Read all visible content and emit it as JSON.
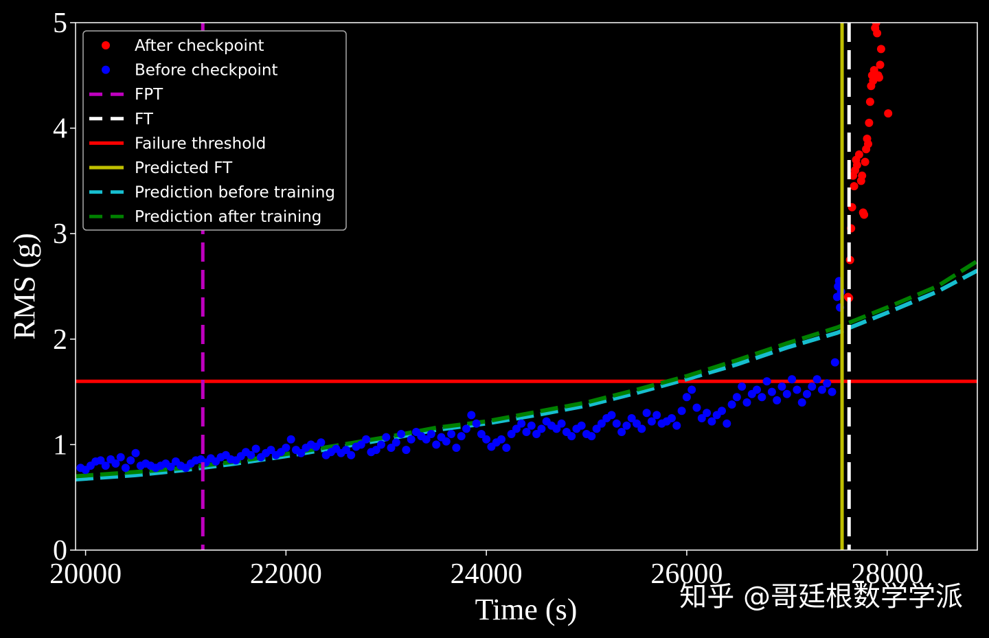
{
  "chart_data": {
    "type": "scatter",
    "title": "",
    "xlabel": "Time (s)",
    "ylabel": "RMS (g)",
    "xlim": [
      19900,
      28900
    ],
    "ylim": [
      0,
      5
    ],
    "x_ticks": [
      {
        "value": 20000,
        "label": "20000"
      },
      {
        "value": 22000,
        "label": "22000"
      },
      {
        "value": 24000,
        "label": "24000"
      },
      {
        "value": 26000,
        "label": "26000"
      },
      {
        "value": 28000,
        "label": "28000"
      }
    ],
    "y_ticks": [
      {
        "value": 0,
        "label": "0"
      },
      {
        "value": 1,
        "label": "1"
      },
      {
        "value": 2,
        "label": "2"
      },
      {
        "value": 3,
        "label": "3"
      },
      {
        "value": 4,
        "label": "4"
      },
      {
        "value": 5,
        "label": "5"
      }
    ],
    "grid": false,
    "legend_position": "top-left",
    "series": [
      {
        "name": "After checkpoint",
        "kind": "scatter",
        "color": "#ff0000",
        "points": [
          [
            27610,
            2.4
          ],
          [
            27620,
            2.39
          ],
          [
            27630,
            2.75
          ],
          [
            27640,
            3.05
          ],
          [
            27650,
            3.25
          ],
          [
            27660,
            3.55
          ],
          [
            27670,
            3.45
          ],
          [
            27680,
            3.6
          ],
          [
            27690,
            3.7
          ],
          [
            27700,
            3.65
          ],
          [
            27720,
            3.75
          ],
          [
            27740,
            3.5
          ],
          [
            27750,
            3.55
          ],
          [
            27760,
            3.2
          ],
          [
            27770,
            3.18
          ],
          [
            27780,
            3.68
          ],
          [
            27790,
            3.8
          ],
          [
            27800,
            3.9
          ],
          [
            27810,
            3.85
          ],
          [
            27820,
            4.05
          ],
          [
            27830,
            4.25
          ],
          [
            27840,
            4.4
          ],
          [
            27850,
            4.5
          ],
          [
            27860,
            4.45
          ],
          [
            27870,
            4.55
          ],
          [
            27880,
            4.95
          ],
          [
            27890,
            5.0
          ],
          [
            27900,
            4.9
          ],
          [
            27910,
            4.5
          ],
          [
            27920,
            4.48
          ],
          [
            27930,
            4.6
          ],
          [
            27940,
            4.75
          ],
          [
            28010,
            4.14
          ]
        ]
      },
      {
        "name": "Before checkpoint",
        "kind": "scatter",
        "color": "#0000ff",
        "points": [
          [
            19950,
            0.78
          ],
          [
            20000,
            0.76
          ],
          [
            20050,
            0.8
          ],
          [
            20100,
            0.84
          ],
          [
            20150,
            0.85
          ],
          [
            20200,
            0.8
          ],
          [
            20250,
            0.86
          ],
          [
            20300,
            0.82
          ],
          [
            20350,
            0.88
          ],
          [
            20400,
            0.78
          ],
          [
            20450,
            0.85
          ],
          [
            20500,
            0.92
          ],
          [
            20550,
            0.8
          ],
          [
            20600,
            0.82
          ],
          [
            20650,
            0.8
          ],
          [
            20700,
            0.78
          ],
          [
            20750,
            0.8
          ],
          [
            20800,
            0.82
          ],
          [
            20850,
            0.79
          ],
          [
            20900,
            0.84
          ],
          [
            20950,
            0.8
          ],
          [
            21000,
            0.78
          ],
          [
            21050,
            0.82
          ],
          [
            21100,
            0.85
          ],
          [
            21150,
            0.86
          ],
          [
            21200,
            0.83
          ],
          [
            21250,
            0.87
          ],
          [
            21300,
            0.84
          ],
          [
            21350,
            0.88
          ],
          [
            21400,
            0.9
          ],
          [
            21450,
            0.86
          ],
          [
            21500,
            0.85
          ],
          [
            21550,
            0.89
          ],
          [
            21600,
            0.93
          ],
          [
            21650,
            0.9
          ],
          [
            21700,
            0.96
          ],
          [
            21750,
            0.88
          ],
          [
            21800,
            0.92
          ],
          [
            21850,
            0.95
          ],
          [
            21900,
            0.9
          ],
          [
            21950,
            0.93
          ],
          [
            22000,
            0.97
          ],
          [
            22050,
            1.05
          ],
          [
            22100,
            0.95
          ],
          [
            22150,
            0.92
          ],
          [
            22200,
            0.97
          ],
          [
            22250,
            1.0
          ],
          [
            22300,
            0.98
          ],
          [
            22350,
            1.02
          ],
          [
            22400,
            0.9
          ],
          [
            22450,
            0.93
          ],
          [
            22500,
            0.96
          ],
          [
            22550,
            0.92
          ],
          [
            22600,
            0.95
          ],
          [
            22650,
            0.9
          ],
          [
            22700,
            0.98
          ],
          [
            22750,
            1.0
          ],
          [
            22800,
            1.05
          ],
          [
            22850,
            0.93
          ],
          [
            22900,
            0.95
          ],
          [
            22950,
            1.0
          ],
          [
            23000,
            1.07
          ],
          [
            23050,
            0.97
          ],
          [
            23100,
            1.02
          ],
          [
            23150,
            1.1
          ],
          [
            23200,
            0.95
          ],
          [
            23250,
            1.05
          ],
          [
            23300,
            1.12
          ],
          [
            23350,
            1.08
          ],
          [
            23400,
            1.05
          ],
          [
            23450,
            1.1
          ],
          [
            23500,
            1.0
          ],
          [
            23550,
            1.07
          ],
          [
            23600,
            1.03
          ],
          [
            23650,
            1.1
          ],
          [
            23700,
            0.97
          ],
          [
            23750,
            1.08
          ],
          [
            23800,
            1.15
          ],
          [
            23850,
            1.28
          ],
          [
            23900,
            1.2
          ],
          [
            23950,
            1.1
          ],
          [
            24000,
            1.05
          ],
          [
            24050,
            0.98
          ],
          [
            24100,
            1.02
          ],
          [
            24150,
            1.05
          ],
          [
            24200,
            0.97
          ],
          [
            24250,
            1.1
          ],
          [
            24300,
            1.15
          ],
          [
            24350,
            1.2
          ],
          [
            24400,
            1.12
          ],
          [
            24450,
            1.18
          ],
          [
            24500,
            1.1
          ],
          [
            24550,
            1.15
          ],
          [
            24600,
            1.22
          ],
          [
            24650,
            1.18
          ],
          [
            24700,
            1.15
          ],
          [
            24750,
            1.2
          ],
          [
            24800,
            1.12
          ],
          [
            24850,
            1.08
          ],
          [
            24900,
            1.15
          ],
          [
            24950,
            1.18
          ],
          [
            25000,
            1.1
          ],
          [
            25050,
            1.08
          ],
          [
            25100,
            1.15
          ],
          [
            25150,
            1.2
          ],
          [
            25200,
            1.25
          ],
          [
            25250,
            1.28
          ],
          [
            25300,
            1.2
          ],
          [
            25350,
            1.12
          ],
          [
            25400,
            1.18
          ],
          [
            25450,
            1.25
          ],
          [
            25500,
            1.2
          ],
          [
            25550,
            1.15
          ],
          [
            25600,
            1.3
          ],
          [
            25650,
            1.22
          ],
          [
            25700,
            1.28
          ],
          [
            25750,
            1.2
          ],
          [
            25800,
            1.22
          ],
          [
            25850,
            1.25
          ],
          [
            25900,
            1.18
          ],
          [
            25950,
            1.32
          ],
          [
            26000,
            1.45
          ],
          [
            26050,
            1.52
          ],
          [
            26100,
            1.35
          ],
          [
            26150,
            1.25
          ],
          [
            26200,
            1.3
          ],
          [
            26250,
            1.22
          ],
          [
            26300,
            1.28
          ],
          [
            26350,
            1.32
          ],
          [
            26400,
            1.2
          ],
          [
            26450,
            1.38
          ],
          [
            26500,
            1.45
          ],
          [
            26550,
            1.55
          ],
          [
            26600,
            1.4
          ],
          [
            26650,
            1.48
          ],
          [
            26700,
            1.52
          ],
          [
            26750,
            1.45
          ],
          [
            26800,
            1.6
          ],
          [
            26850,
            1.5
          ],
          [
            26900,
            1.42
          ],
          [
            26950,
            1.55
          ],
          [
            27000,
            1.48
          ],
          [
            27050,
            1.62
          ],
          [
            27100,
            1.52
          ],
          [
            27150,
            1.4
          ],
          [
            27200,
            1.48
          ],
          [
            27250,
            1.55
          ],
          [
            27300,
            1.62
          ],
          [
            27350,
            1.52
          ],
          [
            27400,
            1.58
          ],
          [
            27450,
            1.5
          ],
          [
            27480,
            1.78
          ],
          [
            27500,
            2.4
          ],
          [
            27510,
            2.5
          ],
          [
            27520,
            2.55
          ],
          [
            27530,
            2.3
          ],
          [
            27540,
            2.45
          ]
        ]
      },
      {
        "name": "FPT",
        "kind": "vline",
        "x": 21170,
        "color": "#bf00bf",
        "dash": "dashed"
      },
      {
        "name": "FT",
        "kind": "vline",
        "x": 27620,
        "color": "#ffffff",
        "dash": "dashed"
      },
      {
        "name": "Failure threshold",
        "kind": "hline",
        "y": 1.6,
        "color": "#ff0000",
        "dash": "solid"
      },
      {
        "name": "Predicted FT",
        "kind": "vline",
        "x": 27550,
        "color": "#bfbf00",
        "dash": "solid"
      },
      {
        "name": "Prediction before training",
        "kind": "line",
        "color": "#17becf",
        "dash": "dashed",
        "points": [
          [
            19900,
            0.67
          ],
          [
            20500,
            0.71
          ],
          [
            21000,
            0.76
          ],
          [
            21500,
            0.82
          ],
          [
            22000,
            0.89
          ],
          [
            22500,
            0.97
          ],
          [
            23000,
            1.05
          ],
          [
            23500,
            1.14
          ],
          [
            24000,
            1.2
          ],
          [
            24500,
            1.28
          ],
          [
            25000,
            1.37
          ],
          [
            25500,
            1.49
          ],
          [
            26000,
            1.62
          ],
          [
            26500,
            1.76
          ],
          [
            27000,
            1.92
          ],
          [
            27500,
            2.06
          ],
          [
            28000,
            2.25
          ],
          [
            28500,
            2.45
          ],
          [
            28900,
            2.65
          ]
        ]
      },
      {
        "name": "Prediction after training",
        "kind": "line",
        "color": "#008000",
        "dash": "dashed",
        "points": [
          [
            19900,
            0.7
          ],
          [
            20500,
            0.74
          ],
          [
            21000,
            0.78
          ],
          [
            21500,
            0.84
          ],
          [
            22000,
            0.91
          ],
          [
            22500,
            0.99
          ],
          [
            23000,
            1.07
          ],
          [
            23500,
            1.16
          ],
          [
            24000,
            1.22
          ],
          [
            24500,
            1.31
          ],
          [
            25000,
            1.4
          ],
          [
            25500,
            1.52
          ],
          [
            26000,
            1.65
          ],
          [
            26500,
            1.8
          ],
          [
            27000,
            1.96
          ],
          [
            27500,
            2.11
          ],
          [
            28000,
            2.3
          ],
          [
            28500,
            2.5
          ],
          [
            28900,
            2.74
          ]
        ]
      }
    ]
  },
  "watermark": "知乎 @哥廷根数学学派"
}
